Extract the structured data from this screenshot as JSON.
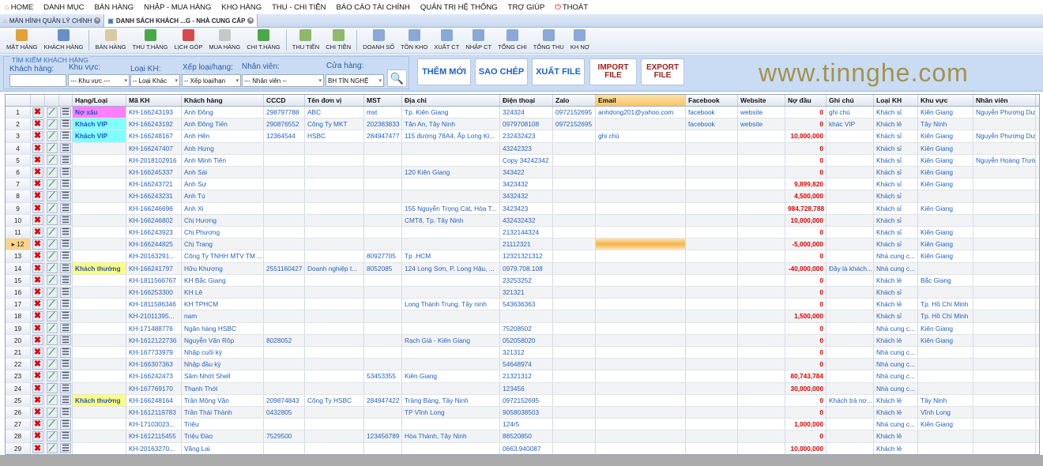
{
  "menu": [
    "HOME",
    "DANH MỤC",
    "BÁN HÀNG",
    "NHẬP - MUA HÀNG",
    "KHO HÀNG",
    "THU - CHI TIỀN",
    "BÁO CÁO TÀI CHÍNH",
    "QUẢN TRỊ HỆ THỐNG",
    "TRỢ GIÚP",
    "THOÁT"
  ],
  "tabs": [
    "MÀN HÌNH QUẢN LÝ CHÍNH",
    "DANH SÁCH KHÁCH ...G - NHÀ CUNG CẤP"
  ],
  "toolbar": [
    {
      "label": "MẶT HÀNG",
      "color": "#e2a23a"
    },
    {
      "label": "KHÁCH HÀNG",
      "color": "#6a8fc8"
    },
    "sep",
    {
      "label": "BÁN HÀNG",
      "color": "#d9c9a4"
    },
    {
      "label": "THU T.HÀNG",
      "color": "#4aa84a"
    },
    {
      "label": "LỊCH GÓP",
      "color": "#d84a4a"
    },
    {
      "label": "MUA HÀNG",
      "color": "#c8c8c8"
    },
    {
      "label": "CHI T.HÀNG",
      "color": "#4aa84a"
    },
    "sep",
    {
      "label": "THU TIỀN",
      "color": "#8fb86a"
    },
    {
      "label": "CHI TIỀN",
      "color": "#8fb86a"
    },
    "sep",
    {
      "label": "DOANH SỐ",
      "color": "#8aa8d8"
    },
    {
      "label": "TỒN KHO",
      "color": "#8aa8d8"
    },
    {
      "label": "XUẤT CT",
      "color": "#8aa8d8"
    },
    {
      "label": "NHẬP CT",
      "color": "#8aa8d8"
    },
    {
      "label": "TỔNG CHI",
      "color": "#8aa8d8"
    },
    {
      "label": "TỔNG THU",
      "color": "#8aa8d8"
    },
    {
      "label": "KH NỢ",
      "color": "#8aa8d8"
    }
  ],
  "search": {
    "title": "TÌM KIẾM KHÁCH HÀNG",
    "labels": [
      "Khách hàng:",
      "Khu vực:",
      "Loại KH:",
      "Xếp loại/hạng:",
      "Nhân viên:",
      "Cửa hàng:"
    ],
    "values": [
      "",
      "--- Khu vực ---",
      "-- Loại Khác",
      "-- Xếp loại/hạn",
      "--- Nhân viên --",
      "BH TÍN NGHỆ"
    ],
    "buttons": [
      "THÊM MỚI",
      "SAO CHÉP",
      "XUẤT FILE",
      "IMPORT FILE",
      "EXPORT FILE"
    ]
  },
  "columns": [
    "",
    "",
    "",
    "",
    "Hạng/Loại",
    "Mã KH",
    "Khách hàng",
    "CCCD",
    "Tên đơn vị",
    "MST",
    "Địa chỉ",
    "Điện thoại",
    "Zalo",
    "Email",
    "Facebook",
    "Website",
    "Nợ đầu",
    "Ghi chú",
    "Loại KH",
    "Khu vực",
    "Nhân viên"
  ],
  "rank_colors": {
    "Nợ xấu": "#ff80ff",
    "Khách VIP": "#80ffff",
    "Khách thường": "#ffff80"
  },
  "selected_row": 12,
  "rows": [
    [
      "Nợ xấu",
      "KH-166243193",
      "Anh Đông",
      "298797788",
      "ABC",
      "mst",
      "Tp. Kiên Giang",
      "324324",
      "0972152695",
      "anhdong201@yahoo.com",
      "facebook",
      "website",
      "0",
      "ghi chú",
      "Khách sỉ",
      "Kiên Giang",
      "Nguyễn Phương Duy"
    ],
    [
      "Khách VIP",
      "KH-166243192",
      "Anh Đông Tiến",
      "290876552",
      "Công Ty MKT",
      "202383833",
      "Tân An, Tây Ninh",
      "0979708108",
      "0972152695",
      "",
      "facebook",
      "website",
      "0",
      "khác VIP",
      "Khách lẻ",
      "Tây Ninh",
      ""
    ],
    [
      "Khách VIP",
      "KH-166248167",
      "Anh Hên",
      "12364544",
      "HSBC",
      "284947477",
      "115 đường 78A4, Ấp Long Ki...",
      "232432423",
      "",
      "ghi chú",
      "",
      "",
      "10,000,000",
      "",
      "Khách sỉ",
      "Kiên Giang",
      "Nguyễn Phương Duy"
    ],
    [
      "",
      "KH-166247407",
      "Anh Hưng",
      "",
      "",
      "",
      "",
      "43242323",
      "",
      "",
      "",
      "",
      "0",
      "",
      "Khách sỉ",
      "Kiên Giang",
      ""
    ],
    [
      "",
      "KH-2018102916",
      "Anh Minh Tiến",
      "",
      "",
      "",
      "",
      "Copy 34242342",
      "",
      "",
      "",
      "",
      "0",
      "",
      "Khách sỉ",
      "Kiên Giang",
      "Nguyễn Hoàng Trườ..."
    ],
    [
      "",
      "KH-166245337",
      "Anh Sái",
      "",
      "",
      "",
      "120 Kiên Giang",
      "343422",
      "",
      "",
      "",
      "",
      "0",
      "",
      "Khách sỉ",
      "Kiên Giang",
      ""
    ],
    [
      "",
      "KH-166243721",
      "Anh Sự",
      "",
      "",
      "",
      "",
      "3423432",
      "",
      "",
      "",
      "",
      "9,899,820",
      "",
      "Khách sỉ",
      "Kiên Giang",
      ""
    ],
    [
      "",
      "KH-166243231",
      "Anh Tú",
      "",
      "",
      "",
      "",
      "3432432",
      "",
      "",
      "",
      "",
      "4,500,000",
      "",
      "Khách sỉ",
      "",
      ""
    ],
    [
      "",
      "KH-166246696",
      "Anh Xi",
      "",
      "",
      "",
      "155 Nguyễn Trọng Cát, Hòa T...",
      "3423423",
      "",
      "",
      "",
      "",
      "984,728,788",
      "",
      "Khách sỉ",
      "Kiên Giang",
      ""
    ],
    [
      "",
      "KH-166246802",
      "Chị Hương",
      "",
      "",
      "",
      "CMT8, Tp. Tây Ninh",
      "432432432",
      "",
      "",
      "",
      "",
      "10,000,000",
      "",
      "Khách sỉ",
      "",
      ""
    ],
    [
      "",
      "KH-166243923",
      "Chị Phương",
      "",
      "",
      "",
      "",
      "2132144324",
      "",
      "",
      "",
      "",
      "0",
      "",
      "Khách sỉ",
      "Kiên Giang",
      ""
    ],
    [
      "",
      "KH-166244825",
      "Chị Trang",
      "",
      "",
      "",
      "",
      "21112321",
      "",
      "",
      "",
      "",
      "-5,000,000",
      "",
      "Khách sỉ",
      "Kiên Giang",
      ""
    ],
    [
      "",
      "KH-20163291...",
      "Công Ty TNHH MTV TM ...",
      "",
      "",
      "80927705",
      "Tp .HCM",
      "12321321312",
      "",
      "",
      "",
      "",
      "0",
      "",
      "Nhà cung c...",
      "Kiên Giang",
      ""
    ],
    [
      "Khách thường",
      "KH-166241797",
      "Hữu Khương",
      "2551160427",
      "Doanh nghiệp t...",
      "8052085",
      "124 Long Sơn, P. Long Hậu, ...",
      "0979.708.108",
      "",
      "",
      "",
      "",
      "-40,000,000",
      "Đây là khách...",
      "Nhà cung c...",
      "",
      ""
    ],
    [
      "",
      "KH-1811566767",
      "KH Bắc Giang",
      "",
      "",
      "",
      "",
      "23253252",
      "",
      "",
      "",
      "",
      "0",
      "",
      "Khách lẻ",
      "Bắc Giang",
      ""
    ],
    [
      "",
      "KH-166253300",
      "KH Lê",
      "",
      "",
      "",
      "",
      "321321",
      "",
      "",
      "",
      "",
      "0",
      "",
      "Khách sỉ",
      "",
      ""
    ],
    [
      "",
      "KH-1811586346",
      "KH TPHCM",
      "",
      "",
      "",
      "Long Thành Trung, Tây ninh",
      "543636363",
      "",
      "",
      "",
      "",
      "0",
      "",
      "Khách lẻ",
      "Tp. Hồ Chí Minh",
      ""
    ],
    [
      "",
      "KH-21011395...",
      "nam",
      "",
      "",
      "",
      "",
      "",
      "",
      "",
      "",
      "",
      "1,500,000",
      "",
      "Khách sỉ",
      "Tp. Hồ Chí Minh",
      ""
    ],
    [
      "",
      "KH-171488776",
      "Ngân hàng HSBC",
      "",
      "",
      "",
      "",
      "75208502",
      "",
      "",
      "",
      "",
      "0",
      "",
      "Nhà cung c...",
      "Kiên Giang",
      ""
    ],
    [
      "",
      "KH-1612122736",
      "Nguyễn Văn Rôp",
      "8028052",
      "",
      "",
      "Rạch Giá - Kiên Giang",
      "052058020",
      "",
      "",
      "",
      "",
      "0",
      "",
      "Khách lẻ",
      "Kiên Giang",
      ""
    ],
    [
      "",
      "KH-167733979",
      "Nhập cuối kỳ",
      "",
      "",
      "",
      "",
      "321312",
      "",
      "",
      "",
      "",
      "0",
      "",
      "Nhà cung c...",
      "",
      ""
    ],
    [
      "",
      "KH-166307363",
      "Nhập đầu kỳ",
      "",
      "",
      "",
      "",
      "54648974",
      "",
      "",
      "",
      "",
      "0",
      "",
      "Nhà cung c...",
      "",
      ""
    ],
    [
      "",
      "KH-166242473",
      "Sâm Nhớt Shell",
      "",
      "",
      "53453355",
      "Kiên Giang",
      "21321312",
      "",
      "",
      "",
      "",
      "80,743,784",
      "",
      "Nhà cung c...",
      "",
      ""
    ],
    [
      "",
      "KH-167769170",
      "Thạnh Thới",
      "",
      "",
      "",
      "",
      "123456",
      "",
      "",
      "",
      "",
      "30,000,000",
      "",
      "Nhà cung c...",
      "",
      ""
    ],
    [
      "Khách thường",
      "KH-166248164",
      "Trần Mộng Vân",
      "209874843",
      "Công Ty HSBC",
      "284947422",
      "Trảng Bàng, Tây Ninh",
      "0972152695",
      "",
      "",
      "",
      "",
      "0",
      "Khách trả nợ...",
      "Khách lẻ",
      "Tây Ninh",
      ""
    ],
    [
      "",
      "KH-1612119783",
      "Trần Thái Thành",
      "0432805",
      "",
      "",
      "TP Vĩnh Long",
      "9058038503",
      "",
      "",
      "",
      "",
      "0",
      "",
      "Khách lẻ",
      "Vĩnh Long",
      ""
    ],
    [
      "",
      "KH-17103023...",
      "Triệu",
      "",
      "",
      "",
      "",
      "124r5",
      "",
      "",
      "",
      "",
      "1,000,000",
      "",
      "Nhà cung c...",
      "Kiên Giang",
      ""
    ],
    [
      "",
      "KH-1612115455",
      "Triệu Đào",
      "7529500",
      "",
      "123456789",
      "Hòa Thành, Tây Ninh",
      "88520850",
      "",
      "",
      "",
      "",
      "0",
      "",
      "Khách lẻ",
      "",
      ""
    ],
    [
      "",
      "KH-20163270...",
      "Vãng Lai",
      "",
      "",
      "",
      "",
      "0663.940087",
      "",
      "",
      "",
      "",
      "10,000,000",
      "",
      "Khách lẻ",
      "",
      ""
    ]
  ],
  "watermark": "www.tinnghe.com"
}
